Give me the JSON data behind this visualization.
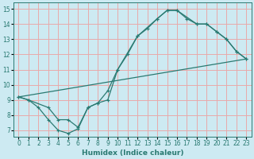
{
  "xlabel": "Humidex (Indice chaleur)",
  "bg_color": "#cdeaf2",
  "grid_color": "#e8aaaa",
  "line_color": "#2a7a72",
  "xlim": [
    -0.5,
    23.5
  ],
  "ylim": [
    6.6,
    15.4
  ],
  "xticks": [
    0,
    1,
    2,
    3,
    4,
    5,
    6,
    7,
    8,
    9,
    10,
    11,
    12,
    13,
    14,
    15,
    16,
    17,
    18,
    19,
    20,
    21,
    22,
    23
  ],
  "yticks": [
    7,
    8,
    9,
    10,
    11,
    12,
    13,
    14,
    15
  ],
  "curve1_x": [
    0,
    1,
    2,
    3,
    4,
    5,
    6,
    7,
    8,
    9,
    10,
    11,
    12,
    13,
    14,
    15,
    16,
    17,
    18,
    19,
    20,
    21,
    22,
    23
  ],
  "curve1_y": [
    9.2,
    9.0,
    8.5,
    7.7,
    7.0,
    6.8,
    7.1,
    8.5,
    8.8,
    9.6,
    11.0,
    12.0,
    13.2,
    13.7,
    14.35,
    14.9,
    14.9,
    14.35,
    14.0,
    14.0,
    13.5,
    13.0,
    12.2,
    11.7
  ],
  "curve2_x": [
    0,
    1,
    3,
    4,
    5,
    6,
    7,
    8,
    9,
    10,
    12,
    14,
    15,
    16,
    18,
    19,
    20,
    21,
    22,
    23
  ],
  "curve2_y": [
    9.2,
    9.0,
    8.5,
    7.7,
    7.7,
    7.2,
    8.5,
    8.8,
    9.0,
    11.0,
    13.2,
    14.35,
    14.9,
    14.9,
    14.0,
    14.0,
    13.5,
    13.0,
    12.2,
    11.7
  ],
  "line3_x": [
    0,
    23
  ],
  "line3_y": [
    9.2,
    11.7
  ],
  "xlabel_fontsize": 6.5,
  "tick_fontsize": 5.5,
  "lw": 0.9,
  "ms": 2.8
}
